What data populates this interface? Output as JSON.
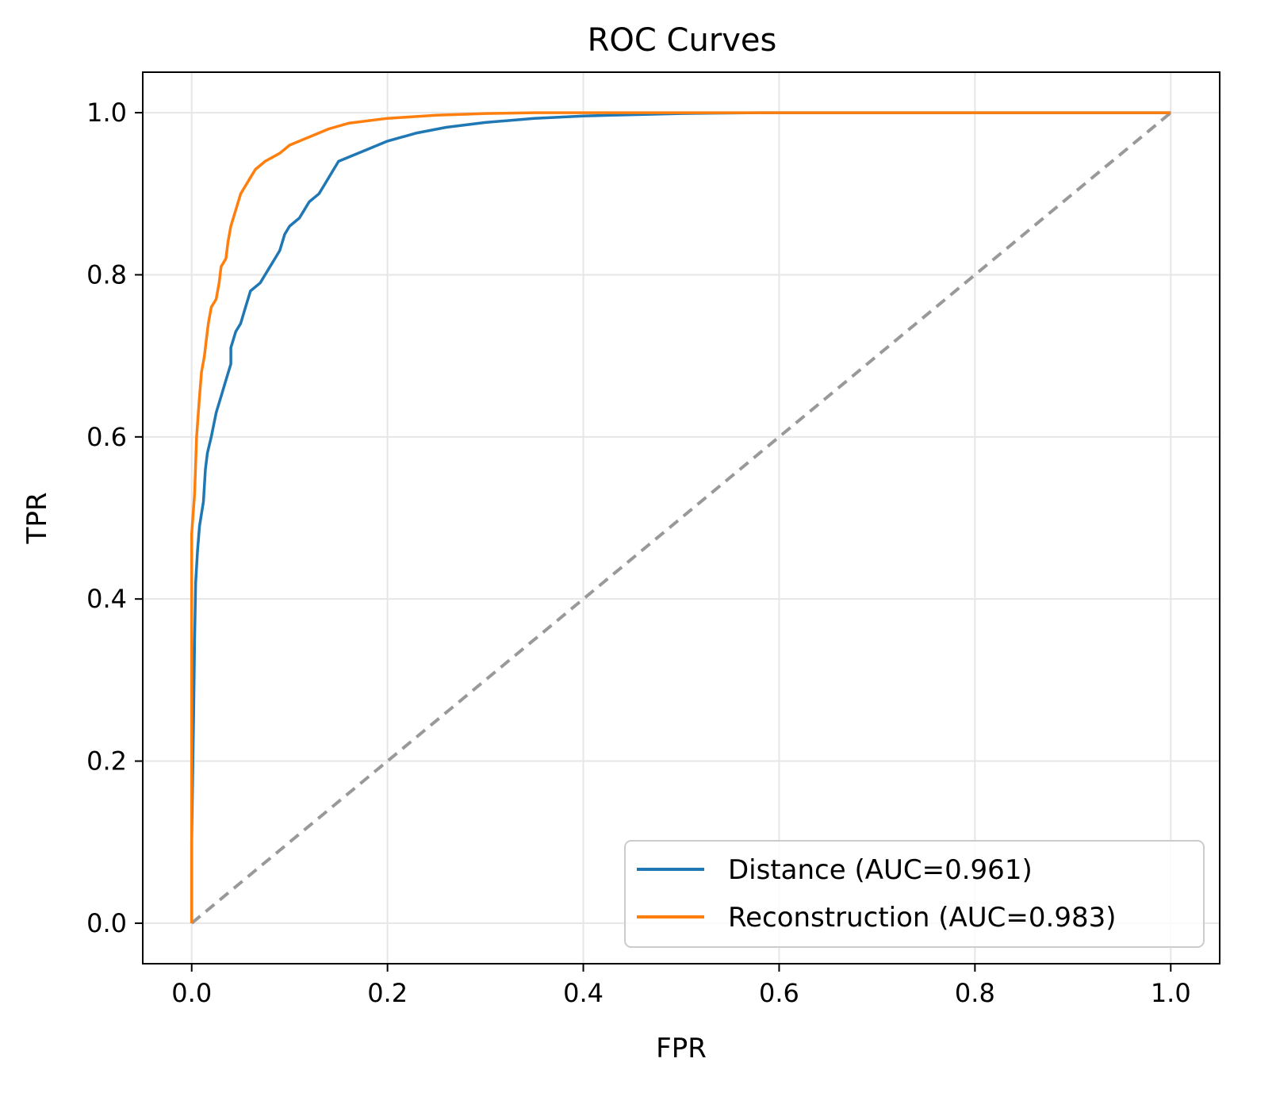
{
  "chart_data": {
    "type": "line",
    "title": "ROC Curves",
    "xlabel": "FPR",
    "ylabel": "TPR",
    "xlim": [
      -0.05,
      1.05
    ],
    "ylim": [
      -0.05,
      1.05
    ],
    "x_ticks": [
      "0.0",
      "0.2",
      "0.4",
      "0.6",
      "0.8",
      "1.0"
    ],
    "y_ticks": [
      "0.0",
      "0.2",
      "0.4",
      "0.6",
      "0.8",
      "1.0"
    ],
    "grid": true,
    "legend_position": "lower-right",
    "series": [
      {
        "name": "Distance (AUC=0.961)",
        "color": "#1f77b4",
        "points": [
          [
            0.0,
            0.0
          ],
          [
            0.0,
            0.1
          ],
          [
            0.002,
            0.26
          ],
          [
            0.003,
            0.35
          ],
          [
            0.004,
            0.42
          ],
          [
            0.006,
            0.46
          ],
          [
            0.008,
            0.49
          ],
          [
            0.012,
            0.52
          ],
          [
            0.014,
            0.56
          ],
          [
            0.016,
            0.58
          ],
          [
            0.02,
            0.6
          ],
          [
            0.025,
            0.63
          ],
          [
            0.03,
            0.65
          ],
          [
            0.035,
            0.67
          ],
          [
            0.04,
            0.69
          ],
          [
            0.04,
            0.71
          ],
          [
            0.045,
            0.73
          ],
          [
            0.05,
            0.74
          ],
          [
            0.055,
            0.76
          ],
          [
            0.06,
            0.78
          ],
          [
            0.07,
            0.79
          ],
          [
            0.08,
            0.81
          ],
          [
            0.085,
            0.82
          ],
          [
            0.09,
            0.83
          ],
          [
            0.095,
            0.85
          ],
          [
            0.1,
            0.86
          ],
          [
            0.11,
            0.87
          ],
          [
            0.115,
            0.88
          ],
          [
            0.12,
            0.89
          ],
          [
            0.13,
            0.9
          ],
          [
            0.135,
            0.91
          ],
          [
            0.14,
            0.92
          ],
          [
            0.145,
            0.93
          ],
          [
            0.15,
            0.94
          ],
          [
            0.16,
            0.945
          ],
          [
            0.18,
            0.955
          ],
          [
            0.2,
            0.965
          ],
          [
            0.23,
            0.975
          ],
          [
            0.26,
            0.982
          ],
          [
            0.3,
            0.988
          ],
          [
            0.35,
            0.993
          ],
          [
            0.4,
            0.996
          ],
          [
            0.5,
            0.999
          ],
          [
            0.58,
            1.0
          ],
          [
            1.0,
            1.0
          ]
        ]
      },
      {
        "name": "Reconstruction (AUC=0.983)",
        "color": "#ff7f0e",
        "points": [
          [
            0.0,
            0.0
          ],
          [
            0.0,
            0.48
          ],
          [
            0.003,
            0.53
          ],
          [
            0.005,
            0.6
          ],
          [
            0.008,
            0.65
          ],
          [
            0.01,
            0.68
          ],
          [
            0.013,
            0.7
          ],
          [
            0.015,
            0.72
          ],
          [
            0.017,
            0.74
          ],
          [
            0.02,
            0.76
          ],
          [
            0.025,
            0.77
          ],
          [
            0.028,
            0.79
          ],
          [
            0.03,
            0.81
          ],
          [
            0.035,
            0.82
          ],
          [
            0.037,
            0.84
          ],
          [
            0.04,
            0.86
          ],
          [
            0.045,
            0.88
          ],
          [
            0.05,
            0.9
          ],
          [
            0.055,
            0.91
          ],
          [
            0.06,
            0.92
          ],
          [
            0.065,
            0.93
          ],
          [
            0.075,
            0.94
          ],
          [
            0.09,
            0.95
          ],
          [
            0.1,
            0.96
          ],
          [
            0.12,
            0.97
          ],
          [
            0.14,
            0.98
          ],
          [
            0.16,
            0.987
          ],
          [
            0.2,
            0.993
          ],
          [
            0.25,
            0.997
          ],
          [
            0.3,
            0.999
          ],
          [
            0.35,
            1.0
          ],
          [
            1.0,
            1.0
          ]
        ]
      },
      {
        "color": "#999999",
        "dashed": true,
        "points": [
          [
            0.0,
            0.0
          ],
          [
            1.0,
            1.0
          ]
        ]
      }
    ]
  }
}
